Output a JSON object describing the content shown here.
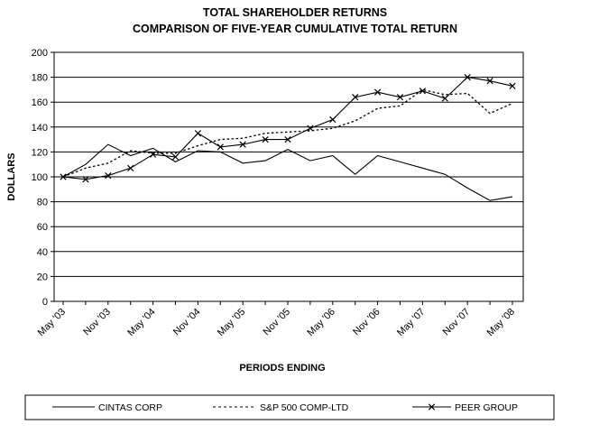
{
  "chart_data": {
    "type": "line",
    "title": "TOTAL SHAREHOLDER RETURNS",
    "subtitle": "COMPARISON OF FIVE-YEAR CUMULATIVE TOTAL RETURN",
    "xlabel": "PERIODS ENDING",
    "ylabel": "DOLLARS",
    "ylim": [
      0,
      200
    ],
    "yticks": [
      0,
      20,
      40,
      60,
      80,
      100,
      120,
      140,
      160,
      180,
      200
    ],
    "grid": true,
    "legend_position": "bottom",
    "x_count": 21,
    "x_ticks": [
      {
        "index": 0,
        "label": "May '03"
      },
      {
        "index": 2,
        "label": "Nov '03"
      },
      {
        "index": 4,
        "label": "May '04"
      },
      {
        "index": 6,
        "label": "Nov '04"
      },
      {
        "index": 8,
        "label": "May '05"
      },
      {
        "index": 10,
        "label": "Nov '05"
      },
      {
        "index": 12,
        "label": "May '06"
      },
      {
        "index": 14,
        "label": "Nov '06"
      },
      {
        "index": 16,
        "label": "May '07"
      },
      {
        "index": 18,
        "label": "Nov '07"
      },
      {
        "index": 20,
        "label": "May '08"
      }
    ],
    "series": [
      {
        "name": "CINTAS CORP",
        "style": "solid",
        "color": "#000000",
        "values": [
          100,
          110,
          126,
          117,
          123,
          112,
          121,
          120,
          111,
          113,
          122,
          113,
          117,
          102,
          117,
          112,
          107,
          102,
          91,
          81,
          84
        ]
      },
      {
        "name": "S&P 500 COMP-LTD",
        "style": "dotted",
        "color": "#000000",
        "values": [
          100,
          107,
          111,
          121,
          119,
          119,
          125,
          130,
          131,
          135,
          136,
          137,
          139,
          145,
          155,
          157,
          170,
          166,
          167,
          151,
          159
        ]
      },
      {
        "name": "PEER GROUP",
        "style": "solid-x",
        "color": "#000000",
        "values": [
          100,
          98,
          101,
          107,
          118,
          116,
          135,
          124,
          126,
          130,
          130,
          139,
          146,
          164,
          168,
          164,
          169,
          163,
          180,
          177,
          173
        ]
      }
    ]
  }
}
